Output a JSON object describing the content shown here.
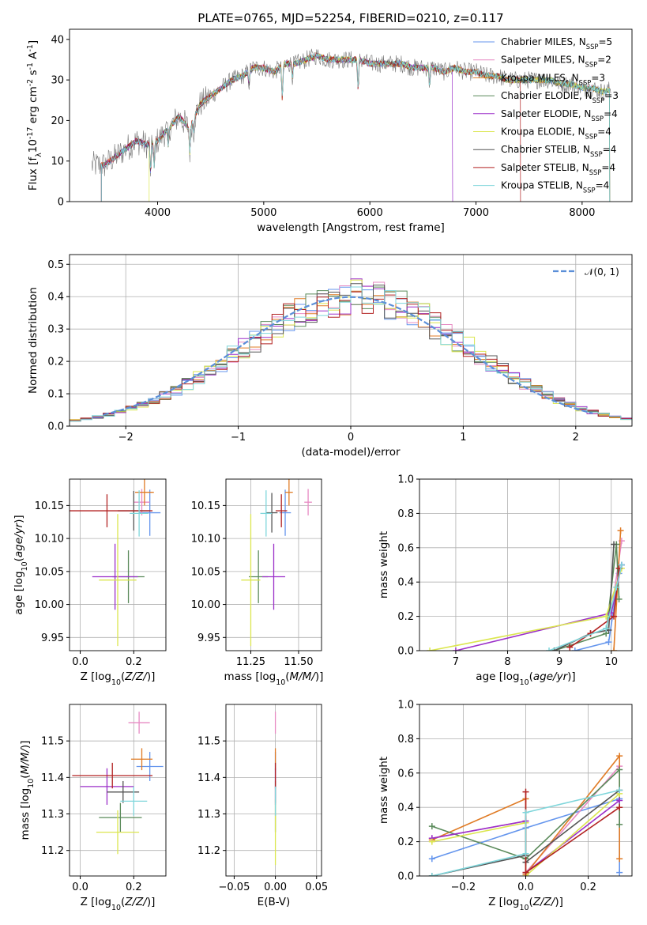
{
  "figure": {
    "title": "PLATE=0765, MJD=52254, FIBERID=0210, z=0.117"
  },
  "model_colors": [
    "#6495ed",
    "#e78ac3",
    "#e07b25",
    "#5a8a5a",
    "#9b2fc9",
    "#dbe64f",
    "#555555",
    "#b22222",
    "#7fd6db"
  ],
  "chart_data": [
    {
      "id": "spectrum",
      "type": "line",
      "title": "PLATE=0765, MJD=52254, FIBERID=0210, z=0.117",
      "xlabel": "wavelength [Angstrom, rest frame]",
      "ylabel": "Flux [f$_\\lambda$10$^{-17}$ erg cm$^{-2}$ s$^{-1}$ A$^{-1}$]",
      "xlim": [
        3170,
        8470
      ],
      "ylim": [
        0,
        42.5
      ],
      "xticks": [
        4000,
        5000,
        6000,
        7000,
        8000
      ],
      "yticks": [
        0,
        10,
        20,
        30,
        40
      ],
      "legend_position": "upper right",
      "series": [
        {
          "name": "Chabrier MILES, N$_{SSP}$=5",
          "color": "#6495ed"
        },
        {
          "name": "Salpeter MILES, N$_{SSP}$=2",
          "color": "#e78ac3"
        },
        {
          "name": "Kroupa MILES, N$_{SSP}$=3",
          "color": "#e07b25"
        },
        {
          "name": "Chabrier ELODIE, N$_{SSP}$=3",
          "color": "#5a8a5a"
        },
        {
          "name": "Salpeter ELODIE, N$_{SSP}$=4",
          "color": "#9b2fc9"
        },
        {
          "name": "Kroupa ELODIE, N$_{SSP}$=4",
          "color": "#dbe64f"
        },
        {
          "name": "Chabrier STELIB, N$_{SSP}$=4",
          "color": "#555555"
        },
        {
          "name": "Salpeter STELIB, N$_{SSP}$=4",
          "color": "#b22222"
        },
        {
          "name": "Kroupa STELIB, N$_{SSP}$=4",
          "color": "#7fd6db"
        }
      ],
      "continuum": {
        "x": [
          3400,
          3500,
          3600,
          3700,
          3800,
          3900,
          4000,
          4100,
          4200,
          4300,
          4400,
          4500,
          4600,
          4700,
          4800,
          4900,
          5000,
          5100,
          5200,
          5300,
          5400,
          5500,
          5600,
          5700,
          5800,
          5900,
          6000,
          6100,
          6200,
          6300,
          6400,
          6500,
          6600,
          6700,
          6800,
          6900,
          7000,
          7100,
          7200,
          7300,
          7400,
          7500,
          7600,
          7700,
          7800,
          7900,
          8000,
          8100,
          8200,
          8300
        ],
        "y": [
          9,
          9,
          11,
          13,
          15,
          14,
          15,
          18,
          21,
          18,
          24,
          26,
          28,
          30,
          31,
          33,
          33,
          32,
          34,
          34,
          35,
          36,
          35,
          35,
          35,
          35,
          34,
          34,
          34,
          34,
          33,
          33,
          33,
          32,
          33,
          32,
          32,
          31,
          31,
          30,
          30,
          30,
          30,
          30,
          29,
          29,
          28,
          28,
          27,
          28
        ]
      },
      "model_start_x": [
        3470,
        3470,
        3470,
        3470,
        3470,
        3920,
        3470,
        3470,
        3470
      ],
      "model_end_x": [
        8260,
        8260,
        8260,
        8260,
        6780,
        8260,
        8260,
        7420,
        8260
      ],
      "data_range": [
        3380,
        8270
      ]
    },
    {
      "id": "residual-histogram",
      "type": "step",
      "xlabel": "(data-model)/error",
      "ylabel": "Normed distribution",
      "xlim": [
        -2.5,
        2.5
      ],
      "ylim": [
        0,
        0.53
      ],
      "xticks": [
        -2,
        -1,
        0,
        1,
        2
      ],
      "yticks": [
        0.0,
        0.1,
        0.2,
        0.3,
        0.4,
        0.5
      ],
      "bin_width": 0.1,
      "legend": "$\\mathcal{N}(0,1)$",
      "reference_curve": "N(0,1)"
    },
    {
      "id": "age-vs-Z",
      "type": "errorbar",
      "xlabel": "Z [log$_{10}$($Z/Z_\\odot$)]",
      "ylabel": "age  [log$_{10}$($age/yr$)]",
      "xlim": [
        -0.04,
        0.32
      ],
      "ylim": [
        9.93,
        10.19
      ],
      "xticks": [
        0.0,
        0.2
      ],
      "yticks": [
        9.95,
        10.0,
        10.05,
        10.1,
        10.15
      ],
      "points": [
        {
          "x": 0.26,
          "y": 10.139,
          "xerr": 0.04,
          "yerr": 0.035
        },
        {
          "x": 0.23,
          "y": 10.155,
          "xerr": 0.03,
          "yerr": 0.02
        },
        {
          "x": 0.24,
          "y": 10.17,
          "xerr": 0.035,
          "yerr": 0.02
        },
        {
          "x": 0.18,
          "y": 10.042,
          "xerr": 0.06,
          "yerr": 0.04
        },
        {
          "x": 0.13,
          "y": 10.042,
          "xerr": 0.085,
          "yerr": 0.05
        },
        {
          "x": 0.14,
          "y": 10.037,
          "xerr": 0.07,
          "yerr": 0.1
        },
        {
          "x": 0.2,
          "y": 10.142,
          "xerr": 0.06,
          "yerr": 0.03
        },
        {
          "x": 0.1,
          "y": 10.142,
          "xerr": 0.17,
          "yerr": 0.025
        },
        {
          "x": 0.22,
          "y": 10.138,
          "xerr": 0.035,
          "yerr": 0.035
        }
      ]
    },
    {
      "id": "age-vs-mass",
      "type": "errorbar",
      "xlabel": "mass [log$_{10}$($M/M_\\odot$)]",
      "ylabel": "",
      "xlim": [
        11.12,
        11.62
      ],
      "ylim": [
        9.93,
        10.19
      ],
      "xticks": [
        11.25,
        11.5
      ],
      "yticks": [
        9.95,
        10.0,
        10.05,
        10.1,
        10.15
      ],
      "points": [
        {
          "x": 11.43,
          "y": 10.139,
          "xerr": 0.03,
          "yerr": 0.035
        },
        {
          "x": 11.55,
          "y": 10.155,
          "xerr": 0.02,
          "yerr": 0.02
        },
        {
          "x": 11.45,
          "y": 10.17,
          "xerr": 0.02,
          "yerr": 0.02
        },
        {
          "x": 11.29,
          "y": 10.042,
          "xerr": 0.05,
          "yerr": 0.04
        },
        {
          "x": 11.37,
          "y": 10.042,
          "xerr": 0.06,
          "yerr": 0.05
        },
        {
          "x": 11.25,
          "y": 10.037,
          "xerr": 0.05,
          "yerr": 0.1
        },
        {
          "x": 11.36,
          "y": 10.139,
          "xerr": 0.03,
          "yerr": 0.03
        },
        {
          "x": 11.41,
          "y": 10.142,
          "xerr": 0.03,
          "yerr": 0.025
        },
        {
          "x": 11.33,
          "y": 10.138,
          "xerr": 0.03,
          "yerr": 0.035
        }
      ]
    },
    {
      "id": "mass-weight-vs-age",
      "type": "line",
      "xlabel": "age  [log$_{10}$($age/yr$)]",
      "ylabel": "mass weight",
      "xlim": [
        6.3,
        10.4
      ],
      "ylim": [
        0,
        1.0
      ],
      "xticks": [
        7,
        8,
        9,
        10
      ],
      "yticks": [
        0.0,
        0.2,
        0.4,
        0.6,
        0.8,
        1.0
      ],
      "series": [
        {
          "x": [
            9.3,
            9.95,
            10.15,
            10.2
          ],
          "y": [
            0.0,
            0.05,
            0.45,
            0.5
          ]
        },
        {
          "x": [
            10.0,
            10.2
          ],
          "y": [
            0.22,
            0.64
          ]
        },
        {
          "x": [
            10.05,
            10.18
          ],
          "y": [
            0.0,
            0.7
          ]
        },
        {
          "x": [
            8.9,
            9.9,
            10.1,
            10.15
          ],
          "y": [
            0.0,
            0.1,
            0.62,
            0.3
          ]
        },
        {
          "x": [
            7.0,
            10.0,
            10.2
          ],
          "y": [
            0.0,
            0.22,
            0.5
          ]
        },
        {
          "x": [
            6.5,
            9.9,
            10.2
          ],
          "y": [
            0.0,
            0.2,
            0.48
          ]
        },
        {
          "x": [
            8.9,
            9.6,
            9.95,
            10.05
          ],
          "y": [
            0.0,
            0.1,
            0.12,
            0.62
          ]
        },
        {
          "x": [
            9.2,
            9.6,
            10.05,
            10.15
          ],
          "y": [
            0.02,
            0.1,
            0.2,
            0.48
          ]
        },
        {
          "x": [
            8.8,
            9.9,
            10.1,
            10.2
          ],
          "y": [
            0.0,
            0.13,
            0.37,
            0.5
          ]
        }
      ]
    },
    {
      "id": "mass-vs-Z",
      "type": "errorbar",
      "xlabel": "Z [log$_{10}$($Z/Z_\\odot$)]",
      "ylabel": "mass [log$_{10}$($M/M_\\odot$)]",
      "xlim": [
        -0.04,
        0.32
      ],
      "ylim": [
        11.13,
        11.6
      ],
      "xticks": [
        0.0,
        0.2
      ],
      "yticks": [
        11.2,
        11.3,
        11.4,
        11.5
      ],
      "points": [
        {
          "x": 0.26,
          "y": 11.43,
          "xerr": 0.05,
          "yerr": 0.04
        },
        {
          "x": 0.22,
          "y": 11.55,
          "xerr": 0.04,
          "yerr": 0.03
        },
        {
          "x": 0.23,
          "y": 11.45,
          "xerr": 0.04,
          "yerr": 0.03
        },
        {
          "x": 0.15,
          "y": 11.29,
          "xerr": 0.08,
          "yerr": 0.04
        },
        {
          "x": 0.1,
          "y": 11.375,
          "xerr": 0.1,
          "yerr": 0.05
        },
        {
          "x": 0.14,
          "y": 11.25,
          "xerr": 0.08,
          "yerr": 0.06
        },
        {
          "x": 0.16,
          "y": 11.36,
          "xerr": 0.06,
          "yerr": 0.03
        },
        {
          "x": 0.12,
          "y": 11.405,
          "xerr": 0.15,
          "yerr": 0.035
        },
        {
          "x": 0.2,
          "y": 11.335,
          "xerr": 0.05,
          "yerr": 0.04
        }
      ]
    },
    {
      "id": "mass-vs-EBV",
      "type": "errorbar",
      "xlabel": "E(B-V)",
      "ylabel": "",
      "xlim": [
        -0.06,
        0.056
      ],
      "ylim": [
        11.13,
        11.6
      ],
      "xticks": [
        -0.05,
        0.0,
        0.05
      ],
      "yticks": [
        11.2,
        11.3,
        11.4,
        11.5
      ],
      "points": [
        {
          "x": 0.0,
          "y": 11.43,
          "xerr": 0.0,
          "yerr": 0.04
        },
        {
          "x": 0.0,
          "y": 11.55,
          "xerr": 0.0,
          "yerr": 0.03
        },
        {
          "x": 0.0,
          "y": 11.45,
          "xerr": 0.0,
          "yerr": 0.03
        },
        {
          "x": 0.0,
          "y": 11.29,
          "xerr": 0.0,
          "yerr": 0.04
        },
        {
          "x": 0.0,
          "y": 11.375,
          "xerr": 0.0,
          "yerr": 0.05
        },
        {
          "x": 0.0,
          "y": 11.25,
          "xerr": 0.0,
          "yerr": 0.09
        },
        {
          "x": 0.0,
          "y": 11.36,
          "xerr": 0.0,
          "yerr": 0.03
        },
        {
          "x": 0.0,
          "y": 11.405,
          "xerr": 0.0,
          "yerr": 0.035
        },
        {
          "x": 0.0,
          "y": 11.335,
          "xerr": 0.0,
          "yerr": 0.04
        }
      ]
    },
    {
      "id": "mass-weight-vs-Z",
      "type": "line",
      "xlabel": "Z [log$_{10}$($Z/Z_\\odot$)]",
      "ylabel": "mass weight",
      "xlim": [
        -0.34,
        0.34
      ],
      "ylim": [
        0,
        1.0
      ],
      "xticks": [
        -0.2,
        0.0,
        0.2
      ],
      "yticks": [
        0.0,
        0.2,
        0.4,
        0.6,
        0.8,
        1.0
      ],
      "series": [
        {
          "x": [
            -0.3,
            0.0,
            0.0,
            0.3,
            0.3
          ],
          "y": [
            0.1,
            0.28,
            0.28,
            0.45,
            0.02
          ]
        },
        {
          "x": [
            -0.3,
            0.0,
            0.0,
            0.3
          ],
          "y": [
            0.22,
            0.32,
            0.02,
            0.64
          ]
        },
        {
          "x": [
            -0.3,
            0.0,
            0.0,
            0.3,
            0.3
          ],
          "y": [
            0.21,
            0.45,
            0.01,
            0.7,
            0.1
          ]
        },
        {
          "x": [
            -0.3,
            0.0,
            0.0,
            0.3,
            0.3
          ],
          "y": [
            0.29,
            0.1,
            0.1,
            0.62,
            0.3
          ]
        },
        {
          "x": [
            -0.3,
            0.0,
            0.0,
            0.3
          ],
          "y": [
            0.22,
            0.32,
            0.02,
            0.44
          ]
        },
        {
          "x": [
            -0.3,
            0.0,
            0.0,
            0.3
          ],
          "y": [
            0.2,
            0.31,
            0.0,
            0.48
          ]
        },
        {
          "x": [
            -0.3,
            0.0,
            0.0,
            0.3
          ],
          "y": [
            0.0,
            0.12,
            0.08,
            0.5
          ]
        },
        {
          "x": [
            0.0,
            0.0,
            0.3
          ],
          "y": [
            0.49,
            0.02,
            0.4
          ]
        },
        {
          "x": [
            -0.3,
            0.0,
            0.0,
            0.3
          ],
          "y": [
            0.0,
            0.13,
            0.37,
            0.5
          ]
        }
      ]
    }
  ]
}
